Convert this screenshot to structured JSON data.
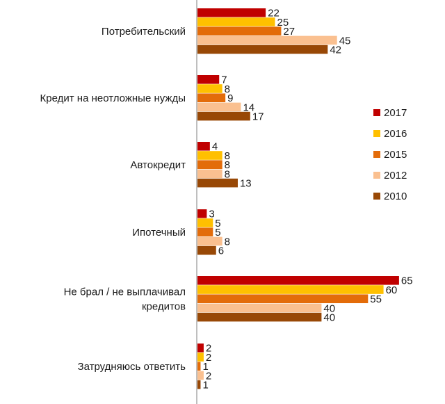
{
  "chart_data": {
    "type": "bar",
    "orientation": "horizontal",
    "categories": [
      [
        "Потребительский"
      ],
      [
        "Кредит на неотложные нужды"
      ],
      [
        "Автокредит"
      ],
      [
        "Ипотечный"
      ],
      [
        "Не брал / не выплачивал",
        "кредитов"
      ],
      [
        "Затрудняюсь ответить"
      ]
    ],
    "series": [
      {
        "name": "2017",
        "color": "#c00000",
        "values": [
          22,
          7,
          4,
          3,
          65,
          2
        ]
      },
      {
        "name": "2016",
        "color": "#ffc000",
        "values": [
          25,
          8,
          8,
          5,
          60,
          2
        ]
      },
      {
        "name": "2015",
        "color": "#e36c0a",
        "values": [
          27,
          9,
          8,
          5,
          55,
          1
        ]
      },
      {
        "name": "2012",
        "color": "#fac090",
        "values": [
          45,
          14,
          8,
          8,
          40,
          2
        ]
      },
      {
        "name": "2010",
        "color": "#984806",
        "values": [
          42,
          17,
          13,
          6,
          40,
          1
        ]
      }
    ],
    "xlim": [
      0,
      65
    ],
    "grid": false,
    "legend": "right",
    "axis_color": "#7f7f7f"
  }
}
